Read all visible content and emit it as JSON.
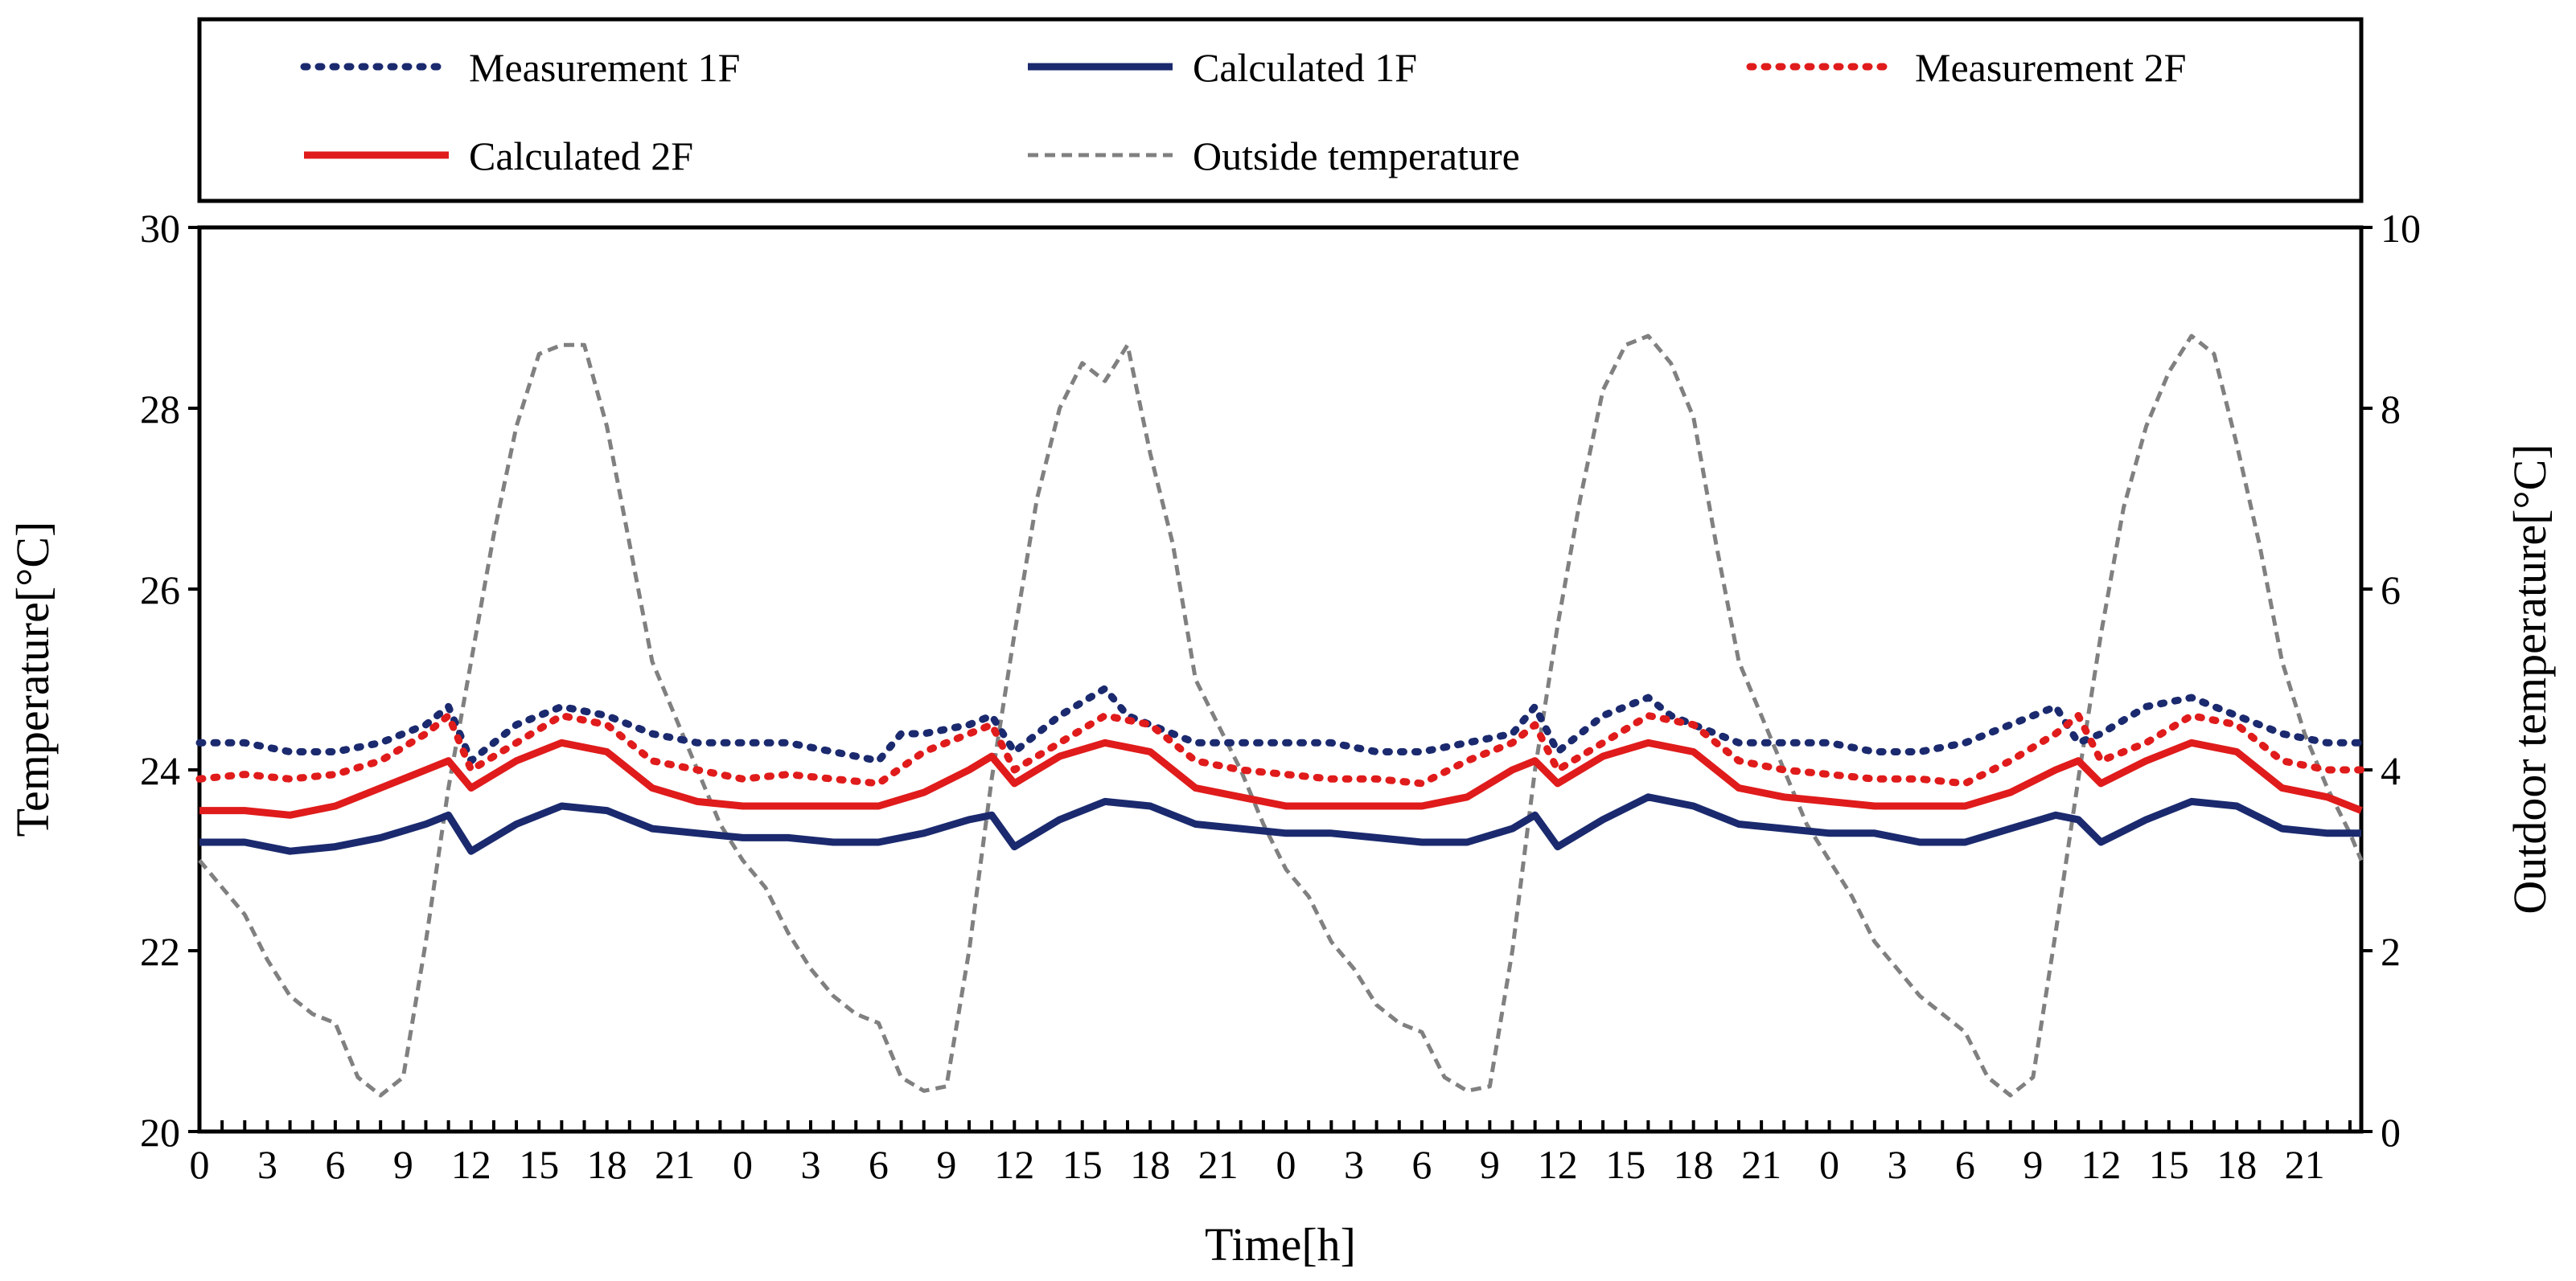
{
  "chart_data": {
    "type": "line",
    "xlabel": "Time[h]",
    "ylabel": "Temperature[°C]",
    "y2label": "Outdoor temperature[°C]",
    "ylim": [
      20,
      30
    ],
    "y2lim": [
      0,
      10
    ],
    "yticks": [
      "20",
      "22",
      "24",
      "26",
      "28",
      "30"
    ],
    "y2ticks": [
      "0",
      "2",
      "4",
      "6",
      "8",
      "10"
    ],
    "xlim": [
      0,
      95.5
    ],
    "xtick_labels": [
      "0",
      "3",
      "6",
      "9",
      "12",
      "15",
      "18",
      "21",
      "0",
      "3",
      "6",
      "9",
      "12",
      "15",
      "18",
      "21",
      "0",
      "3",
      "6",
      "9",
      "12",
      "15",
      "18",
      "21",
      "0",
      "3",
      "6",
      "9",
      "12",
      "15",
      "18",
      "21"
    ],
    "legend_position": "top",
    "legend": [
      {
        "key": "m1f",
        "label": "Measurement 1F",
        "color": "#1b2a6e",
        "style": "dotted"
      },
      {
        "key": "c1f",
        "label": "Calculated 1F",
        "color": "#1b2a6e",
        "style": "solid"
      },
      {
        "key": "m2f",
        "label": "Measurement 2F",
        "color": "#e01b1b",
        "style": "dotted"
      },
      {
        "key": "c2f",
        "label": "Calculated 2F",
        "color": "#e01b1b",
        "style": "solid"
      },
      {
        "key": "out",
        "label": "Outside temperature",
        "color": "#808080",
        "style": "dashed"
      }
    ],
    "series": [
      {
        "name": "Measurement 1F",
        "axis": "left",
        "hours": [
          0,
          2,
          4,
          6,
          8,
          10,
          11,
          12,
          14,
          16,
          18,
          20,
          22,
          24,
          26,
          28,
          30,
          31,
          32,
          34,
          35,
          36,
          38,
          40,
          41,
          42,
          44,
          46,
          48,
          50,
          52,
          54,
          56,
          58,
          59,
          60,
          62,
          64,
          65,
          66,
          68,
          70,
          72,
          74,
          76,
          78,
          80,
          82,
          83,
          84,
          86,
          88,
          90,
          92,
          94,
          95.5
        ],
        "values": [
          24.3,
          24.3,
          24.2,
          24.2,
          24.3,
          24.5,
          24.7,
          24.1,
          24.5,
          24.7,
          24.6,
          24.4,
          24.3,
          24.3,
          24.3,
          24.2,
          24.1,
          24.4,
          24.4,
          24.5,
          24.6,
          24.2,
          24.6,
          24.9,
          24.6,
          24.5,
          24.3,
          24.3,
          24.3,
          24.3,
          24.2,
          24.2,
          24.3,
          24.4,
          24.7,
          24.2,
          24.6,
          24.8,
          24.6,
          24.5,
          24.3,
          24.3,
          24.3,
          24.2,
          24.2,
          24.3,
          24.5,
          24.7,
          24.3,
          24.4,
          24.7,
          24.8,
          24.6,
          24.4,
          24.3,
          24.3
        ]
      },
      {
        "name": "Calculated 1F",
        "axis": "left",
        "hours": [
          0,
          2,
          4,
          6,
          8,
          10,
          11,
          12,
          14,
          16,
          18,
          20,
          22,
          24,
          26,
          28,
          30,
          32,
          34,
          35,
          36,
          38,
          40,
          42,
          44,
          46,
          48,
          50,
          52,
          54,
          56,
          58,
          59,
          60,
          62,
          64,
          66,
          68,
          70,
          72,
          74,
          76,
          78,
          80,
          82,
          83,
          84,
          86,
          88,
          90,
          92,
          94,
          95.5
        ],
        "values": [
          23.2,
          23.2,
          23.1,
          23.15,
          23.25,
          23.4,
          23.5,
          23.1,
          23.4,
          23.6,
          23.55,
          23.35,
          23.3,
          23.25,
          23.25,
          23.2,
          23.2,
          23.3,
          23.45,
          23.5,
          23.15,
          23.45,
          23.65,
          23.6,
          23.4,
          23.35,
          23.3,
          23.3,
          23.25,
          23.2,
          23.2,
          23.35,
          23.5,
          23.15,
          23.45,
          23.7,
          23.6,
          23.4,
          23.35,
          23.3,
          23.3,
          23.2,
          23.2,
          23.35,
          23.5,
          23.45,
          23.2,
          23.45,
          23.65,
          23.6,
          23.35,
          23.3,
          23.3
        ]
      },
      {
        "name": "Measurement 2F",
        "axis": "left",
        "hours": [
          0,
          2,
          4,
          6,
          8,
          10,
          11,
          12,
          14,
          16,
          18,
          20,
          22,
          24,
          26,
          28,
          30,
          32,
          34,
          35,
          36,
          38,
          40,
          42,
          44,
          46,
          48,
          50,
          52,
          54,
          56,
          58,
          59,
          60,
          62,
          64,
          66,
          68,
          70,
          72,
          74,
          76,
          78,
          80,
          82,
          83,
          84,
          86,
          88,
          90,
          92,
          94,
          95.5
        ],
        "values": [
          23.9,
          23.95,
          23.9,
          23.95,
          24.1,
          24.4,
          24.6,
          24.0,
          24.3,
          24.6,
          24.5,
          24.1,
          24.0,
          23.9,
          23.95,
          23.9,
          23.85,
          24.2,
          24.4,
          24.5,
          24.0,
          24.3,
          24.6,
          24.5,
          24.1,
          24.0,
          23.95,
          23.9,
          23.9,
          23.85,
          24.1,
          24.3,
          24.5,
          24.0,
          24.3,
          24.6,
          24.5,
          24.1,
          24.0,
          23.95,
          23.9,
          23.9,
          23.85,
          24.1,
          24.4,
          24.6,
          24.1,
          24.3,
          24.6,
          24.5,
          24.1,
          24.0,
          24.0
        ]
      },
      {
        "name": "Calculated 2F",
        "axis": "left",
        "hours": [
          0,
          2,
          4,
          6,
          8,
          10,
          11,
          12,
          14,
          16,
          18,
          20,
          22,
          24,
          26,
          28,
          30,
          32,
          34,
          35,
          36,
          38,
          40,
          42,
          44,
          46,
          48,
          50,
          52,
          54,
          56,
          58,
          59,
          60,
          62,
          64,
          66,
          68,
          70,
          72,
          74,
          76,
          78,
          80,
          82,
          83,
          84,
          86,
          88,
          90,
          92,
          94,
          95.5
        ],
        "values": [
          23.55,
          23.55,
          23.5,
          23.6,
          23.8,
          24.0,
          24.1,
          23.8,
          24.1,
          24.3,
          24.2,
          23.8,
          23.65,
          23.6,
          23.6,
          23.6,
          23.6,
          23.75,
          24.0,
          24.15,
          23.85,
          24.15,
          24.3,
          24.2,
          23.8,
          23.7,
          23.6,
          23.6,
          23.6,
          23.6,
          23.7,
          24.0,
          24.1,
          23.85,
          24.15,
          24.3,
          24.2,
          23.8,
          23.7,
          23.65,
          23.6,
          23.6,
          23.6,
          23.75,
          24.0,
          24.1,
          23.85,
          24.1,
          24.3,
          24.2,
          23.8,
          23.7,
          23.55
        ]
      },
      {
        "name": "Outside temperature",
        "axis": "right",
        "hours": [
          0,
          1,
          2,
          3,
          4,
          5,
          6,
          7,
          8,
          9,
          10,
          11,
          12,
          13,
          14,
          15,
          16,
          17,
          18,
          19,
          20,
          21,
          22,
          23,
          24,
          25,
          26,
          27,
          28,
          29,
          30,
          31,
          32,
          33,
          34,
          35,
          36,
          37,
          38,
          39,
          40,
          41,
          42,
          43,
          44,
          45,
          46,
          47,
          48,
          49,
          50,
          51,
          52,
          53,
          54,
          55,
          56,
          57,
          58,
          59,
          60,
          61,
          62,
          63,
          64,
          65,
          66,
          67,
          68,
          69,
          70,
          71,
          72,
          73,
          74,
          75,
          76,
          77,
          78,
          79,
          80,
          81,
          82,
          83,
          84,
          85,
          86,
          87,
          88,
          89,
          90,
          91,
          92,
          93,
          94,
          95,
          95.5
        ],
        "values": [
          3.0,
          2.7,
          2.4,
          1.9,
          1.5,
          1.3,
          1.2,
          0.6,
          0.4,
          0.6,
          2.1,
          3.8,
          5.2,
          6.6,
          7.8,
          8.6,
          8.7,
          8.7,
          7.8,
          6.5,
          5.2,
          4.6,
          4.0,
          3.4,
          3.0,
          2.7,
          2.2,
          1.8,
          1.5,
          1.3,
          1.2,
          0.6,
          0.45,
          0.5,
          2.0,
          3.9,
          5.5,
          7.0,
          8.0,
          8.5,
          8.3,
          8.7,
          7.5,
          6.5,
          5.0,
          4.5,
          4.0,
          3.4,
          2.9,
          2.6,
          2.1,
          1.8,
          1.4,
          1.2,
          1.1,
          0.6,
          0.45,
          0.5,
          2.0,
          4.0,
          5.6,
          7.0,
          8.2,
          8.7,
          8.8,
          8.5,
          7.9,
          6.5,
          5.2,
          4.6,
          4.0,
          3.4,
          3.0,
          2.6,
          2.1,
          1.8,
          1.5,
          1.3,
          1.1,
          0.6,
          0.4,
          0.6,
          2.2,
          3.9,
          5.5,
          6.9,
          7.8,
          8.4,
          8.8,
          8.6,
          7.6,
          6.5,
          5.2,
          4.4,
          3.8,
          3.3,
          3.0
        ]
      }
    ]
  }
}
